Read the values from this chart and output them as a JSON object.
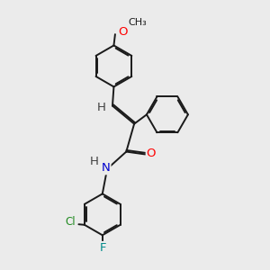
{
  "background_color": "#ebebeb",
  "bond_color": "#1a1a1a",
  "atom_colors": {
    "O": "#ff0000",
    "N": "#0000cd",
    "Cl": "#228b22",
    "F": "#008b8b",
    "H": "#404040",
    "C": "#1a1a1a"
  },
  "lw": 1.4,
  "dbo": 0.055,
  "xlim": [
    0,
    10
  ],
  "ylim": [
    0,
    10
  ],
  "r": 0.78
}
